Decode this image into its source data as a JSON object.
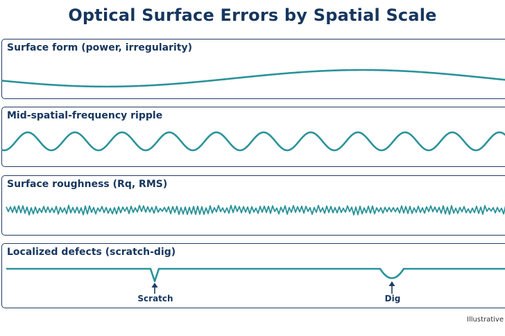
{
  "title": "Optical Surface Errors by Spatial Scale",
  "panels": [
    {
      "label": "Surface form (power, irregularity)"
    },
    {
      "label": "Mid-spatial-frequency ripple"
    },
    {
      "label": "Surface roughness (Rq, RMS)"
    },
    {
      "label": "Localized defects (scratch-dig)"
    }
  ],
  "defects": {
    "scratch_label": "Scratch",
    "dig_label": "Dig"
  },
  "note": "Illustrative",
  "colors": {
    "wave": "#2a9299",
    "frame": "#1d3b63",
    "text": "#16365f"
  }
}
